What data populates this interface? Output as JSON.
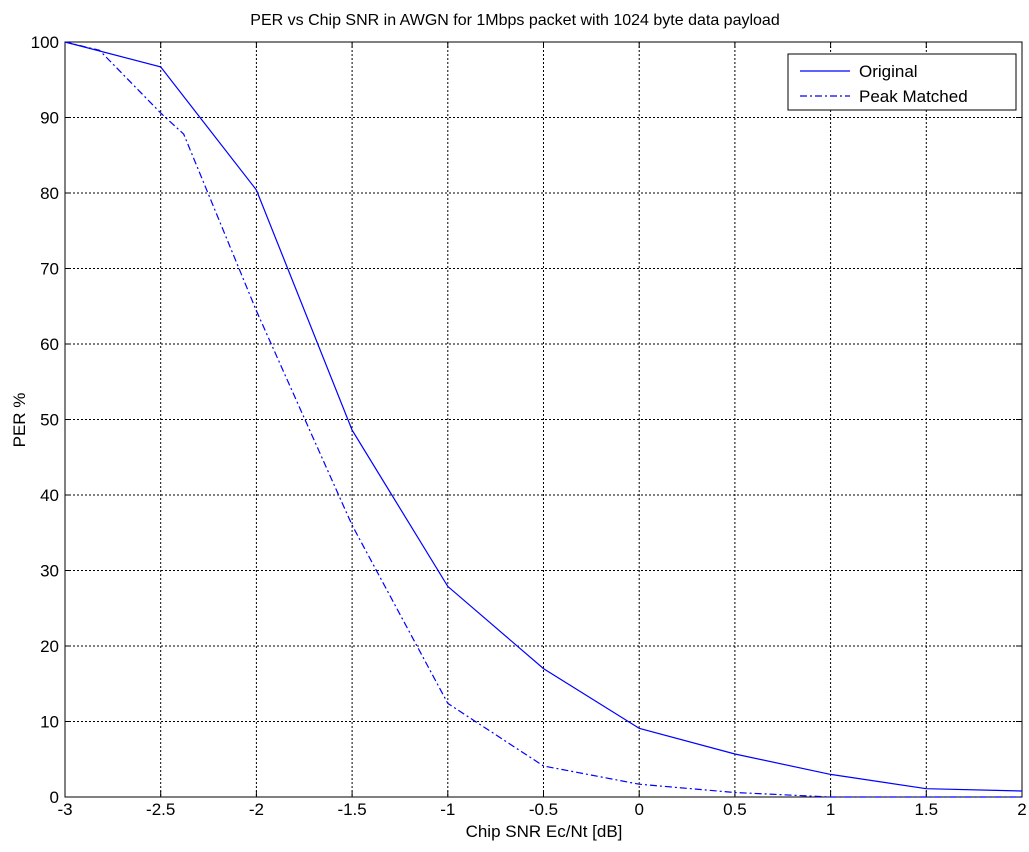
{
  "chart_data": {
    "type": "line",
    "title": "PER vs Chip SNR in AWGN for 1Mbps packet with 1024 byte data payload",
    "xlabel": "Chip SNR Ec/Nt [dB]",
    "ylabel": "PER %",
    "xlim": [
      -3,
      2
    ],
    "ylim": [
      0,
      100
    ],
    "x_ticks": [
      -3,
      -2.5,
      -2,
      -1.5,
      -1,
      -0.5,
      0,
      0.5,
      1,
      1.5,
      2
    ],
    "x_tick_labels": [
      "-3",
      "-2.5",
      "-2",
      "-1.5",
      "-1",
      "-0.5",
      "0",
      "0.5",
      "1",
      "1.5",
      "2"
    ],
    "y_ticks": [
      0,
      10,
      20,
      30,
      40,
      50,
      60,
      70,
      80,
      90,
      100
    ],
    "y_tick_labels": [
      "0",
      "10",
      "20",
      "30",
      "40",
      "50",
      "60",
      "70",
      "80",
      "90",
      "100"
    ],
    "grid": true,
    "legend_position": "top-right",
    "series": [
      {
        "name": "Original",
        "line_style": "solid",
        "color": "#0000ff",
        "x": [
          -3,
          -2.5,
          -2,
          -1.5,
          -1,
          -0.5,
          0,
          0.5,
          1,
          1.5,
          2
        ],
        "y": [
          100,
          96.7,
          80.4,
          48.6,
          27.9,
          17.0,
          9.1,
          5.7,
          3.0,
          1.1,
          0.8
        ]
      },
      {
        "name": "Peak Matched",
        "line_style": "dashed",
        "color": "#0000ff",
        "x": [
          -3,
          -2.82,
          -2.5,
          -2.38,
          -2,
          -1.5,
          -1,
          -0.5,
          0,
          0.5,
          1,
          1.5,
          2
        ],
        "y": [
          100,
          98.9,
          90.6,
          87.8,
          64.4,
          36.0,
          12.4,
          4.1,
          1.7,
          0.6,
          0.0,
          0.0,
          0.0
        ]
      }
    ]
  }
}
